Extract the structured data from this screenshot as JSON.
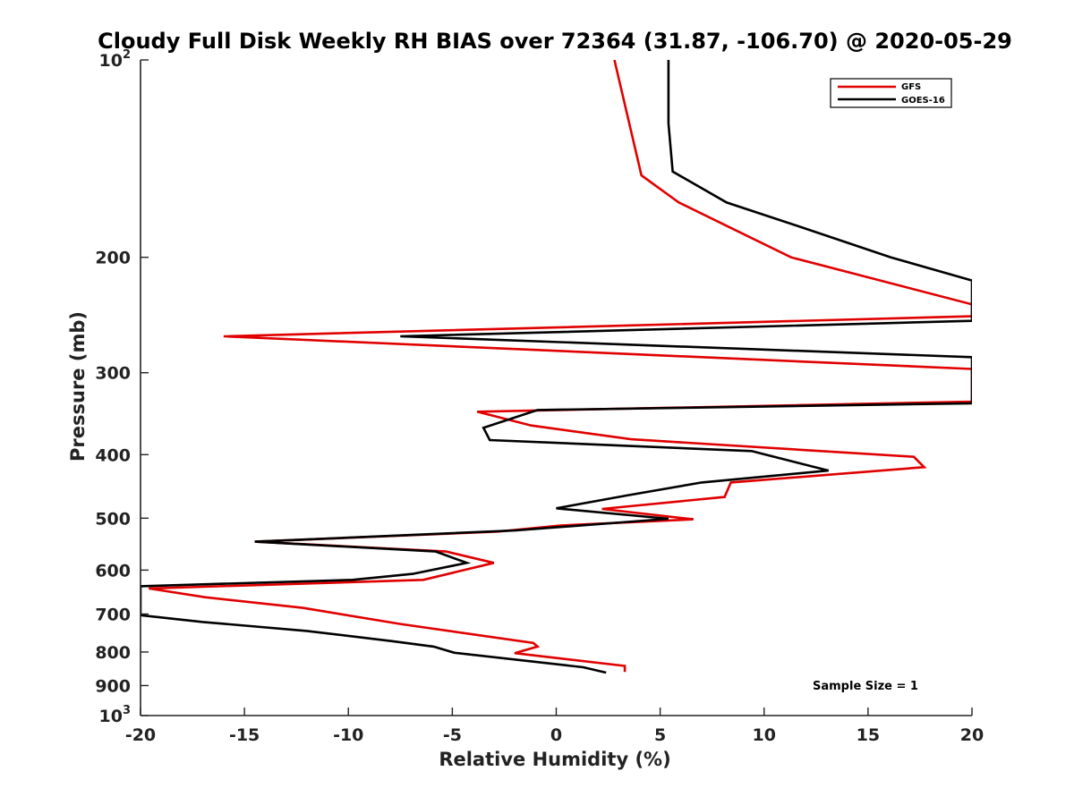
{
  "chart_data": {
    "type": "line",
    "title": "Cloudy Full Disk Weekly RH BIAS over 72364 (31.87, -106.70) @ 2020-05-29",
    "xlabel": "Relative Humidity (%)",
    "ylabel": "Pressure (mb)",
    "xlim": [
      -20,
      20
    ],
    "ylim": [
      100,
      1000
    ],
    "y_scale": "log",
    "y_reversed": true,
    "grid": false,
    "legend_position": "top-right",
    "x_ticks": [
      {
        "value": -20,
        "label": "-20"
      },
      {
        "value": -15,
        "label": "-15"
      },
      {
        "value": -10,
        "label": "-10"
      },
      {
        "value": -5,
        "label": "-5"
      },
      {
        "value": 0,
        "label": "0"
      },
      {
        "value": 5,
        "label": "5"
      },
      {
        "value": 10,
        "label": "10"
      },
      {
        "value": 15,
        "label": "15"
      },
      {
        "value": 20,
        "label": "20"
      }
    ],
    "y_ticks": [
      {
        "value": 100,
        "base": "10",
        "exp": "2"
      },
      {
        "value": 200,
        "label": "200"
      },
      {
        "value": 300,
        "label": "300"
      },
      {
        "value": 400,
        "label": "400"
      },
      {
        "value": 500,
        "label": "500"
      },
      {
        "value": 600,
        "label": "600"
      },
      {
        "value": 700,
        "label": "700"
      },
      {
        "value": 800,
        "label": "800"
      },
      {
        "value": 900,
        "label": "900"
      },
      {
        "value": 1000,
        "base": "10",
        "exp": "3"
      }
    ],
    "annotation": "Sample Size = 1",
    "series": [
      {
        "name": "GFS",
        "color": "#e00000",
        "points": [
          [
            2.8,
            100
          ],
          [
            4.1,
            150
          ],
          [
            5.9,
            165
          ],
          [
            11.3,
            200
          ],
          [
            20,
            236
          ],
          [
            20,
            246
          ],
          [
            -16,
            264
          ],
          [
            20,
            296
          ],
          [
            20,
            332
          ],
          [
            -3.8,
            344
          ],
          [
            -1.2,
            361
          ],
          [
            3.6,
            379
          ],
          [
            17.2,
            403
          ],
          [
            17.7,
            418
          ],
          [
            8.4,
            441
          ],
          [
            8.1,
            464
          ],
          [
            2.2,
            484
          ],
          [
            6.6,
            502
          ],
          [
            0.2,
            513
          ],
          [
            -2.8,
            524
          ],
          [
            -14.5,
            543
          ],
          [
            -5.3,
            562
          ],
          [
            -3.0,
            585
          ],
          [
            -6.4,
            621
          ],
          [
            -19.6,
            640
          ],
          [
            -16.9,
            660
          ],
          [
            -12.2,
            685
          ],
          [
            -7.5,
            725
          ],
          [
            -1.1,
            775
          ],
          [
            -0.9,
            785
          ],
          [
            -2.0,
            803
          ],
          [
            3.3,
            840
          ],
          [
            3.3,
            858
          ]
        ]
      },
      {
        "name": "GOES-16",
        "color": "#000000",
        "points": [
          [
            5.4,
            100
          ],
          [
            5.4,
            125
          ],
          [
            5.6,
            148
          ],
          [
            8.2,
            165
          ],
          [
            11.8,
            180
          ],
          [
            16.1,
            200
          ],
          [
            20,
            217
          ],
          [
            20,
            250
          ],
          [
            -7.5,
            264
          ],
          [
            20,
            284
          ],
          [
            20,
            334
          ],
          [
            -0.9,
            342
          ],
          [
            -3.5,
            364
          ],
          [
            -3.2,
            380
          ],
          [
            9.4,
            395
          ],
          [
            13.1,
            423
          ],
          [
            7.0,
            441
          ],
          [
            3.5,
            461
          ],
          [
            0,
            483
          ],
          [
            5.4,
            501
          ],
          [
            -2.0,
            522
          ],
          [
            -14.5,
            543
          ],
          [
            -5.8,
            562
          ],
          [
            -4.3,
            585
          ],
          [
            -6.9,
            608
          ],
          [
            -9.8,
            621
          ],
          [
            -20,
            635
          ],
          [
            -20,
            703
          ],
          [
            -17,
            720
          ],
          [
            -12,
            743
          ],
          [
            -7.9,
            770
          ],
          [
            -5.9,
            785
          ],
          [
            -4.9,
            802
          ],
          [
            1.3,
            844
          ],
          [
            2.4,
            860
          ]
        ]
      }
    ]
  }
}
